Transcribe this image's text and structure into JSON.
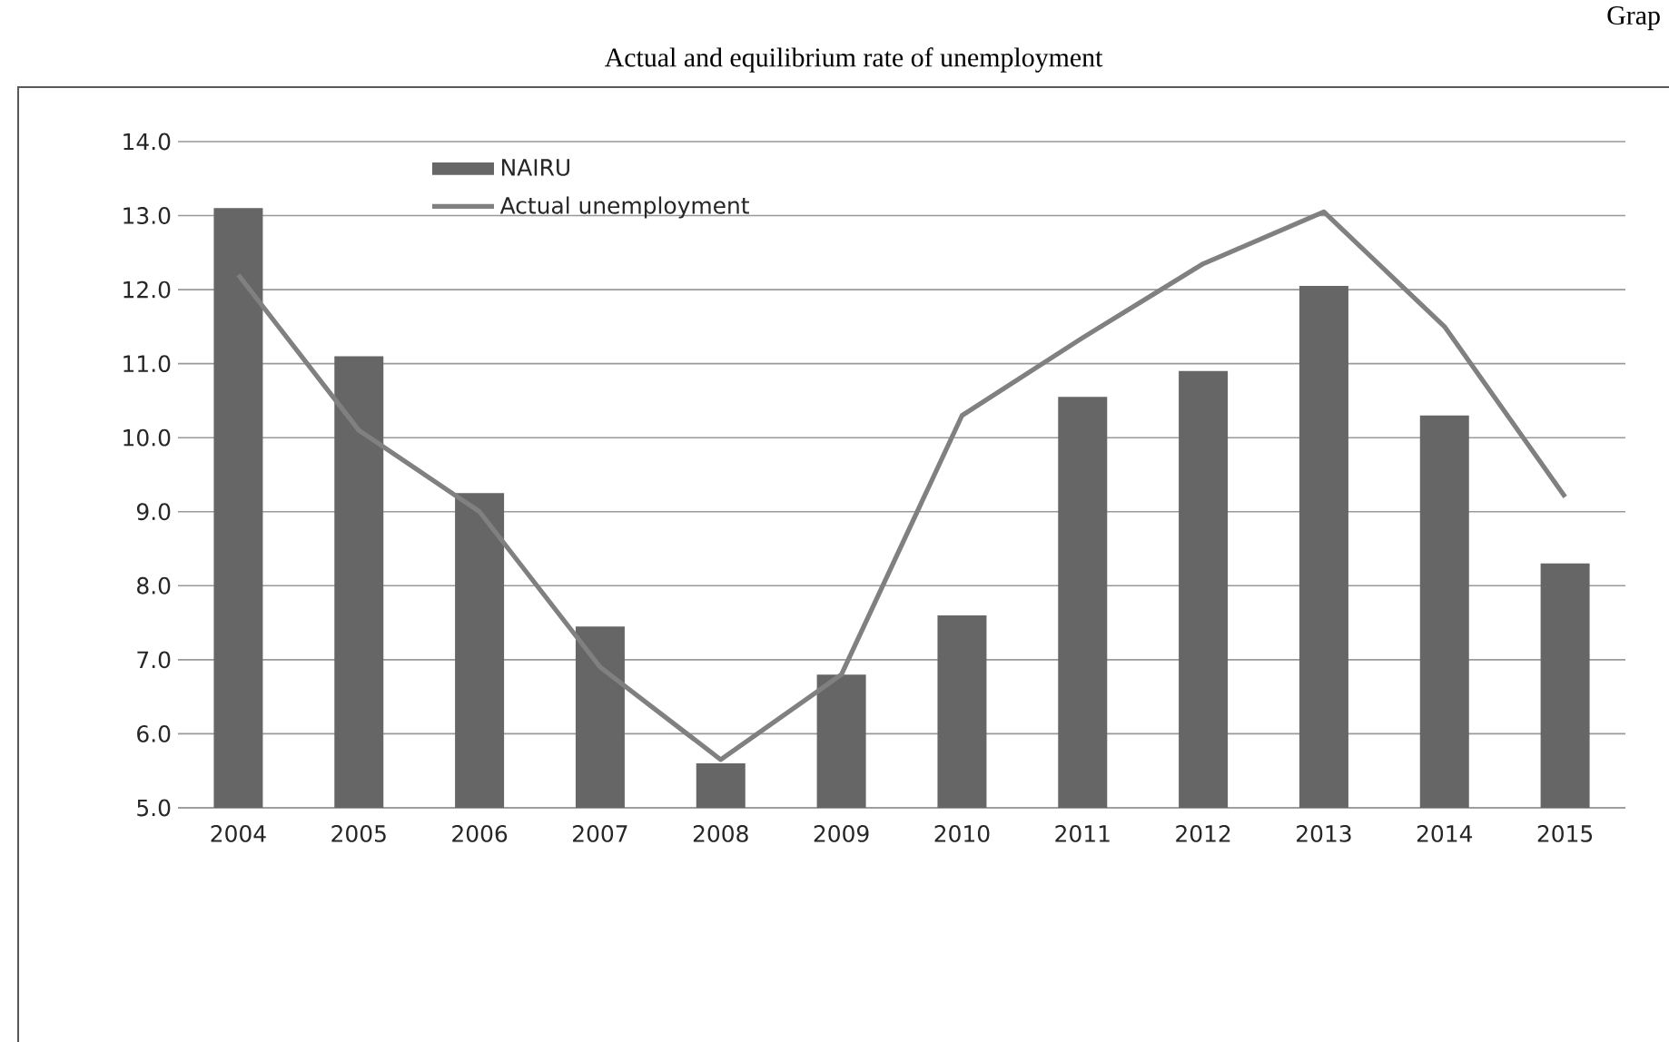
{
  "chart_data": {
    "type": "bar",
    "title": "Actual and equilibrium rate of unemployment",
    "annotations": [
      "Grap"
    ],
    "categories": [
      "2004",
      "2005",
      "2006",
      "2007",
      "2008",
      "2009",
      "2010",
      "2011",
      "2012",
      "2013",
      "2014",
      "2015"
    ],
    "series": [
      {
        "name": "NAIRU",
        "color": "#666666",
        "values": [
          13.1,
          11.1,
          9.25,
          7.45,
          5.6,
          6.8,
          7.6,
          10.55,
          10.9,
          12.05,
          10.3,
          8.3
        ]
      },
      {
        "name": "Actual unemployment",
        "type": "line",
        "color": "#808080",
        "values": [
          12.2,
          10.1,
          9.0,
          6.9,
          5.65,
          6.8,
          10.3,
          11.35,
          12.35,
          13.05,
          11.5,
          9.2
        ]
      }
    ],
    "ylim": [
      5,
      14
    ],
    "yticks": [
      {
        "value": 5,
        "label": "5.0"
      },
      {
        "value": 6,
        "label": "6.0"
      },
      {
        "value": 7,
        "label": "7.0"
      },
      {
        "value": 8,
        "label": "8.0"
      },
      {
        "value": 9,
        "label": "9.0"
      },
      {
        "value": 10,
        "label": "10.0"
      },
      {
        "value": 11,
        "label": "11.0"
      },
      {
        "value": 12,
        "label": "12.0"
      },
      {
        "value": 13,
        "label": "13.0"
      },
      {
        "value": 14,
        "label": "14.0"
      }
    ],
    "grid": "y",
    "legend": "top left",
    "marker": "none",
    "line_style": "solid"
  }
}
